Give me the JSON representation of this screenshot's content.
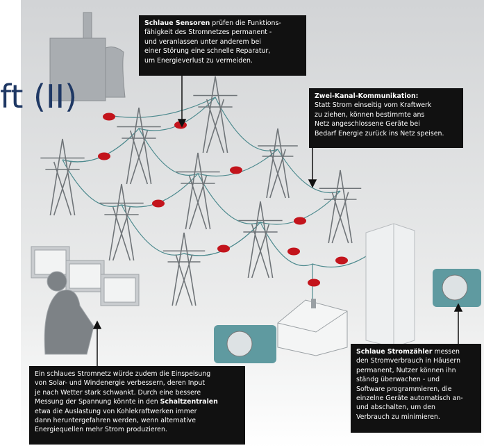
{
  "slide_title": "ft (II)",
  "callouts": [
    {
      "lines": [
        [
          {
            "bold": "Schlaue Sensoren"
          },
          " prüfen die Funktions-"
        ],
        [
          "fähigkeit des Stromnetzes permanent -"
        ],
        [
          "und veranlassen unter anderem bei"
        ],
        [
          "einer Störung eine schnelle Reparatur,"
        ],
        [
          "um Energieverlust zu vermeiden."
        ]
      ]
    },
    {
      "lines": [
        [
          {
            "bold": "Zwei-Kanal-Kommunikation:"
          }
        ],
        [
          "Statt Strom einseitig vom Kraftwerk"
        ],
        [
          "zu ziehen, können bestimmte ans"
        ],
        [
          "Netz angeschlossene Geräte bei"
        ],
        [
          "Bedarf Energie zurück ins Netz speisen."
        ]
      ]
    },
    {
      "lines": [
        [
          "Ein schlaues Stromnetz würde zudem die Einspeisung"
        ],
        [
          "von Solar- und Windenergie verbessern, deren Input"
        ],
        [
          "je nach Wetter stark schwankt. Durch eine bessere"
        ],
        [
          "Messung der Spannung könnte in den ",
          {
            "bold": "Schaltzentralen"
          }
        ],
        [
          "etwa die Auslastung von Kohlekraftwerken immer"
        ],
        [
          "dann heruntergefahren werden, wenn alternative"
        ],
        [
          "Energiequellen mehr Strom produzieren."
        ]
      ]
    },
    {
      "lines": [
        [
          {
            "bold": "Schlaue Stromzähler"
          },
          " messen"
        ],
        [
          "den Stromverbrauch in Häusern"
        ],
        [
          "permanent, Nutzer können ihn"
        ],
        [
          "ständg überwachen - und"
        ],
        [
          "Software programmieren, die"
        ],
        [
          "einzelne Geräte automatisch an-"
        ],
        [
          "und abschalten, um den"
        ],
        [
          "Verbrauch zu minimieren."
        ]
      ]
    }
  ]
}
